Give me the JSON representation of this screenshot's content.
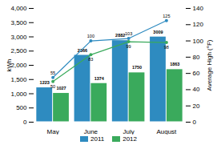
{
  "chart_data": {
    "type": "bar",
    "categories": [
      "May",
      "June",
      "July",
      "August"
    ],
    "series": [
      {
        "name": "2011",
        "type": "bar",
        "color": "#2e8bc0",
        "values": [
          1223,
          2366,
          2882,
          3009
        ]
      },
      {
        "name": "2012",
        "type": "bar",
        "color": "#3aaa5c",
        "values": [
          1027,
          1374,
          1750,
          1863
        ]
      },
      {
        "name": "2011",
        "type": "line",
        "axis": "y2",
        "color": "#2e8bc0",
        "marker": "circle",
        "values": [
          55,
          100,
          103,
          125
        ]
      },
      {
        "name": "2012",
        "type": "line",
        "axis": "y2",
        "color": "#3aaa5c",
        "marker": "circle",
        "values": [
          50,
          83,
          99,
          98
        ]
      }
    ],
    "ylabel": "kWh",
    "y2label": "Average High (°F)",
    "ylim": [
      0,
      4000
    ],
    "yticks": [
      0,
      500,
      1000,
      1500,
      2000,
      2500,
      3000,
      3500,
      4000
    ],
    "y2lim": [
      0,
      140
    ],
    "y2ticks": [
      0,
      20,
      40,
      60,
      80,
      100,
      120,
      140
    ],
    "data_labels": true,
    "grid": false,
    "legend": "bottom"
  }
}
